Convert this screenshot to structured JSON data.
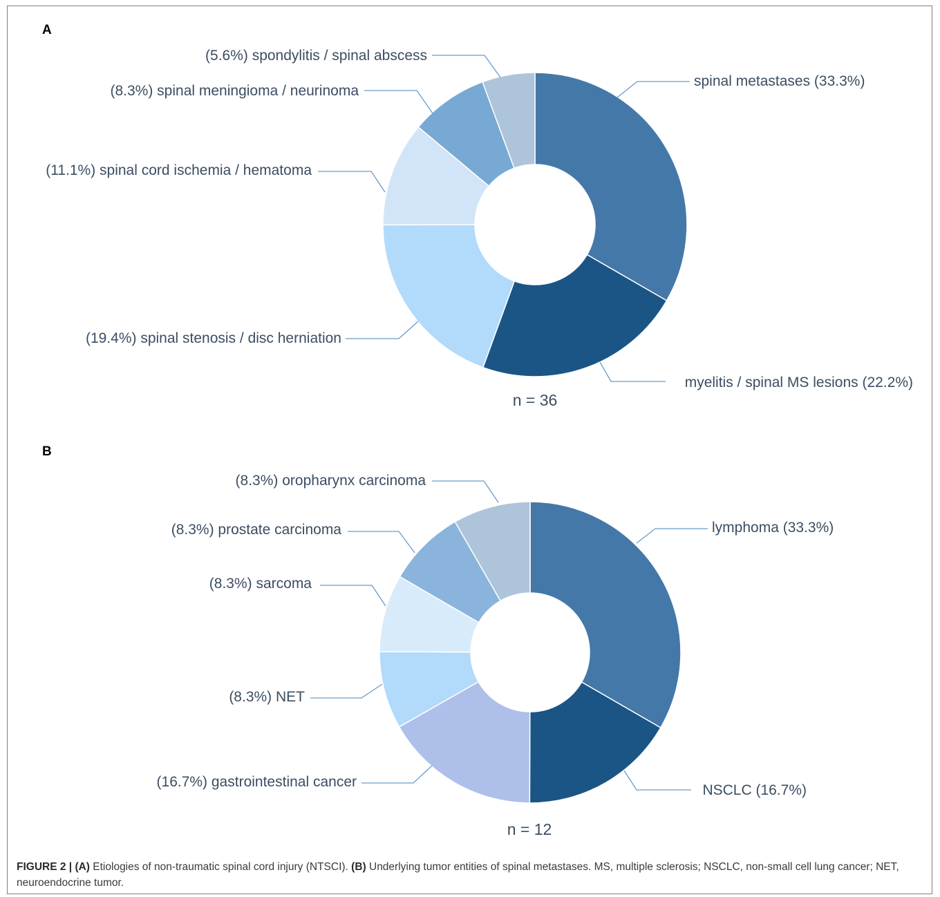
{
  "chart_data": [
    {
      "type": "pie",
      "panel": "A",
      "n_label": "n = 36",
      "slices": [
        {
          "label": "spinal metastases (33.3%)",
          "value": 33.3,
          "color": "#4478a8"
        },
        {
          "label": "myelitis / spinal MS lesions (22.2%)",
          "value": 22.2,
          "color": "#1a5586"
        },
        {
          "label": "(19.4%) spinal stenosis / disc herniation",
          "value": 19.4,
          "color": "#b1dafb"
        },
        {
          "label": "(11.1%) spinal cord ischemia / hematoma",
          "value": 11.1,
          "color": "#d2e4f8"
        },
        {
          "label": "(8.3%) spinal meningioma / neurinoma",
          "value": 8.3,
          "color": "#77a9d4"
        },
        {
          "label": "(5.6%) spondylitis / spinal abscess",
          "value": 5.6,
          "color": "#aec4db"
        }
      ]
    },
    {
      "type": "pie",
      "panel": "B",
      "n_label": "n = 12",
      "slices": [
        {
          "label": "lymphoma (33.3%)",
          "value": 33.3,
          "color": "#4478a8"
        },
        {
          "label": "NSCLC (16.7%)",
          "value": 16.7,
          "color": "#1a5586"
        },
        {
          "label": "(16.7%) gastrointestinal cancer",
          "value": 16.7,
          "color": "#aec0ea"
        },
        {
          "label": "(8.3%) NET",
          "value": 8.3,
          "color": "#b1dafb"
        },
        {
          "label": "(8.3%) sarcoma",
          "value": 8.3,
          "color": "#d8ebfb"
        },
        {
          "label": "(8.3%) prostate carcinoma",
          "value": 8.3,
          "color": "#8ab4db"
        },
        {
          "label": "(8.3%) oropharynx carcinoma",
          "value": 8.3,
          "color": "#aec4db"
        }
      ]
    }
  ],
  "caption": {
    "figure": "FIGURE 2 |",
    "a_marker": "(A)",
    "a_text": " Etiologies of non-traumatic spinal cord injury (NTSCI). ",
    "b_marker": "(B)",
    "b_text": " Underlying tumor entities of spinal metastases. MS, multiple sclerosis; NSCLC, non-small cell lung cancer; NET, neuroendocrine tumor."
  },
  "colors": {
    "text": "#3b4d62",
    "leader": "#6a9bc8"
  }
}
